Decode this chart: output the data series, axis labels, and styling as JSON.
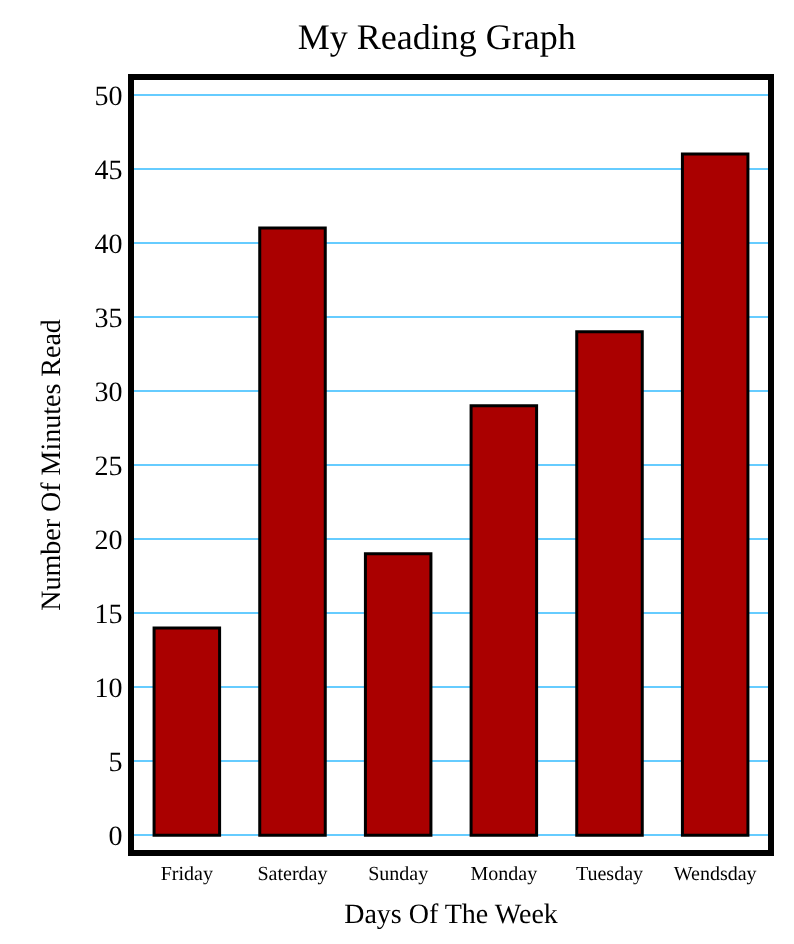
{
  "chart_data": {
    "type": "bar",
    "title": "My Reading Graph",
    "xlabel": "Days Of The Week",
    "ylabel": "Number Of Minutes Read",
    "categories": [
      "Friday",
      "Saterday",
      "Sunday",
      "Monday",
      "Tuesday",
      "Wendsday"
    ],
    "values": [
      14,
      41,
      19,
      29,
      34,
      46
    ],
    "color": "#aa0000",
    "ylim": [
      -1,
      51
    ],
    "yticks": [
      0,
      5,
      10,
      15,
      20,
      25,
      30,
      35,
      40,
      45,
      50
    ],
    "grid": "y"
  }
}
